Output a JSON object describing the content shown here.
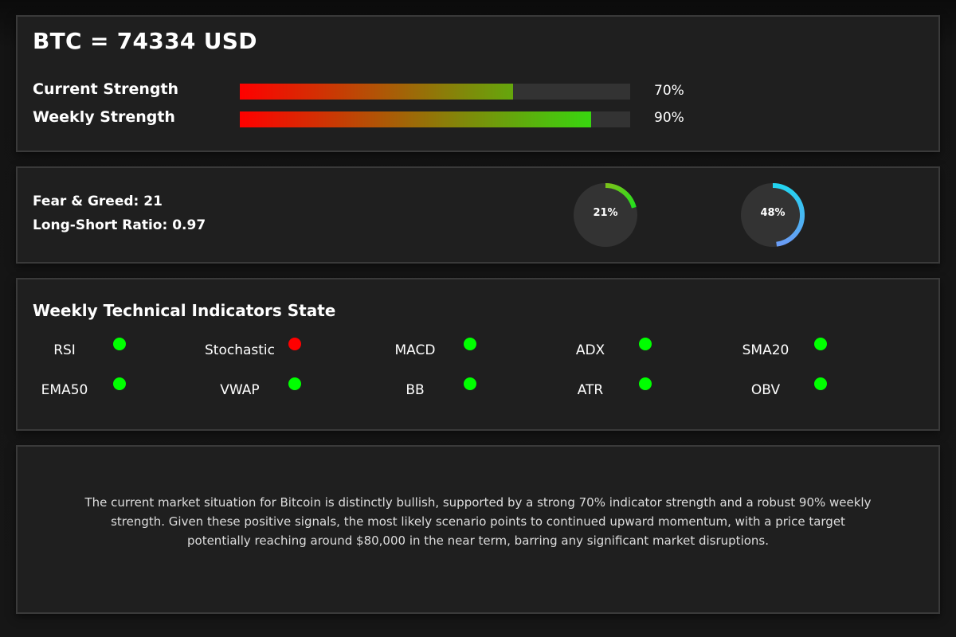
{
  "header": {
    "title": "BTC = 74334 USD"
  },
  "strength": [
    {
      "label": "Current Strength",
      "percent_text": "70%",
      "value": 0.7
    },
    {
      "label": "Weekly Strength",
      "percent_text": "90%",
      "value": 0.9
    }
  ],
  "sentiment": {
    "fear_greed": "Fear & Greed: 21",
    "long_short": "Long-Short Ratio: 0.97",
    "gauges": [
      {
        "label": "21%",
        "value": 0.21,
        "color_start": "#7bc21a",
        "color_end": "#22e01e"
      },
      {
        "label": "48%",
        "value": 0.48,
        "color_start": "#22d4f0",
        "color_end": "#6a9cf5"
      }
    ]
  },
  "indicators": {
    "title": "Weekly Technical Indicators State",
    "items": [
      {
        "name": "RSI",
        "state": "bullish"
      },
      {
        "name": "Stochastic",
        "state": "bearish"
      },
      {
        "name": "MACD",
        "state": "bullish"
      },
      {
        "name": "ADX",
        "state": "bullish"
      },
      {
        "name": "SMA20",
        "state": "bullish"
      },
      {
        "name": "EMA50",
        "state": "bullish"
      },
      {
        "name": "VWAP",
        "state": "bullish"
      },
      {
        "name": "BB",
        "state": "bullish"
      },
      {
        "name": "ATR",
        "state": "bullish"
      },
      {
        "name": "OBV",
        "state": "bullish"
      }
    ]
  },
  "colors": {
    "bullish": "#00ff00",
    "bearish": "#ff0000",
    "bar_start": "#ff0000",
    "bar_end": "#22ee11"
  },
  "summary": {
    "text": "The current market situation for Bitcoin is distinctly bullish, supported by a strong 70% indicator strength and a robust 90% weekly strength. Given these positive signals, the most likely scenario points to continued upward momentum, with a price target potentially reaching around $80,000 in the near term, barring any significant market disruptions."
  }
}
